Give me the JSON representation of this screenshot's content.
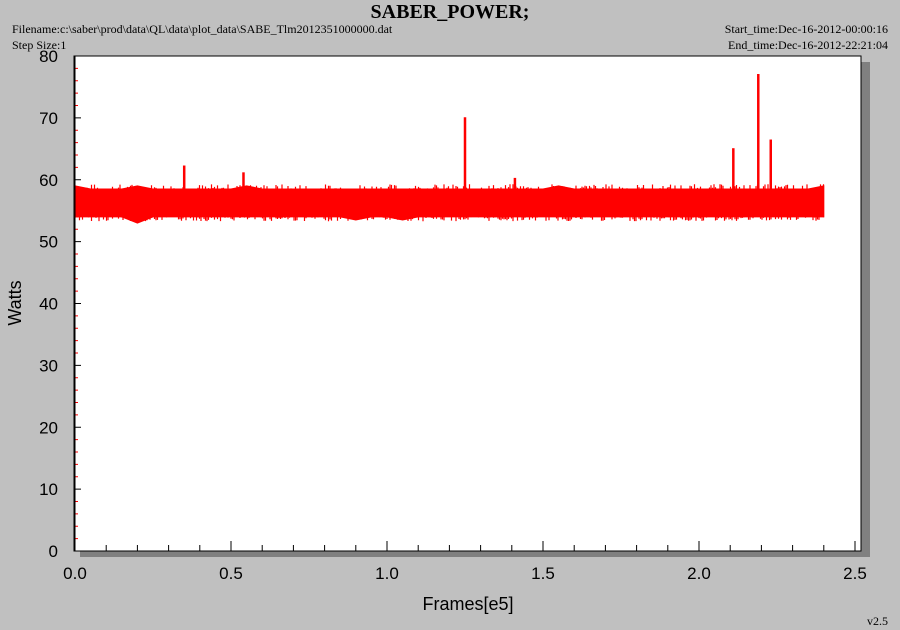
{
  "header": {
    "title": "SABER_POWER;",
    "filename": "Filename:c:\\saber\\prod\\data\\QL\\data\\plot_data\\SABE_Tlm2012351000000.dat",
    "step_size": "Step Size:1",
    "start_time": "Start_time:Dec-16-2012-00:00:16",
    "end_time": "End_time:Dec-16-2012-22:21:04"
  },
  "footer": {
    "version": "v2.5"
  },
  "colors": {
    "series": "#ff0000",
    "plot_bg": "#ffffff",
    "page_bg": "#c0c0c0",
    "shadow": "#808080"
  },
  "chart_data": {
    "type": "line",
    "xlabel": "Frames[e5]",
    "ylabel": "Watts",
    "xlim": [
      0,
      2.5
    ],
    "ylim": [
      0,
      80
    ],
    "x_ticks": [
      "0.0",
      "0.5",
      "1.0",
      "1.5",
      "2.0",
      "2.5"
    ],
    "y_ticks": [
      "0",
      "10",
      "20",
      "30",
      "40",
      "50",
      "60",
      "70",
      "80"
    ],
    "grid": false,
    "series": [
      {
        "x": [
          0.0,
          0.05,
          0.1,
          0.15,
          0.2,
          0.25,
          0.3,
          0.35,
          0.4,
          0.45,
          0.5,
          0.55,
          0.6,
          0.65,
          0.7,
          0.75,
          0.8,
          0.85,
          0.9,
          0.95,
          1.0,
          1.05,
          1.1,
          1.15,
          1.2,
          1.25,
          1.3,
          1.35,
          1.4,
          1.45,
          1.5,
          1.55,
          1.6,
          1.65,
          1.7,
          1.75,
          1.8,
          1.85,
          1.9,
          1.95,
          2.0,
          2.05,
          2.1,
          2.15,
          2.2,
          2.25,
          2.3,
          2.35,
          2.4
        ],
        "y_max": [
          59,
          58.5,
          58.5,
          58.5,
          59,
          58.5,
          58.5,
          58.5,
          58.5,
          58.5,
          58.5,
          59,
          58.5,
          58.5,
          58.5,
          58.5,
          58.5,
          58.5,
          58.5,
          58.5,
          58.5,
          58.5,
          58.5,
          58.5,
          58.5,
          58.5,
          58.5,
          58.5,
          58.5,
          58.5,
          58.5,
          59,
          58.5,
          58.5,
          58.5,
          58.5,
          58.5,
          58.5,
          58.5,
          58.5,
          58.5,
          58.5,
          58.5,
          58.5,
          58.5,
          58.5,
          58.5,
          58.5,
          59
        ],
        "y_min": [
          54,
          54,
          54,
          54,
          53,
          54,
          54,
          54,
          54,
          54,
          54,
          54,
          54,
          54,
          54,
          54,
          54,
          54,
          53.5,
          54,
          54,
          53.5,
          54,
          54,
          54,
          54,
          54,
          54,
          54,
          54,
          54,
          54,
          54,
          54,
          54,
          54,
          54,
          54,
          54,
          54,
          54,
          54,
          54,
          54,
          54,
          54,
          54,
          54,
          54
        ]
      }
    ],
    "spikes": [
      {
        "x": 0.35,
        "y": 62.3
      },
      {
        "x": 0.54,
        "y": 61.2
      },
      {
        "x": 1.25,
        "y": 70.1
      },
      {
        "x": 1.41,
        "y": 60.3
      },
      {
        "x": 2.11,
        "y": 65.1
      },
      {
        "x": 2.19,
        "y": 77.1
      },
      {
        "x": 2.23,
        "y": 66.5
      }
    ]
  }
}
